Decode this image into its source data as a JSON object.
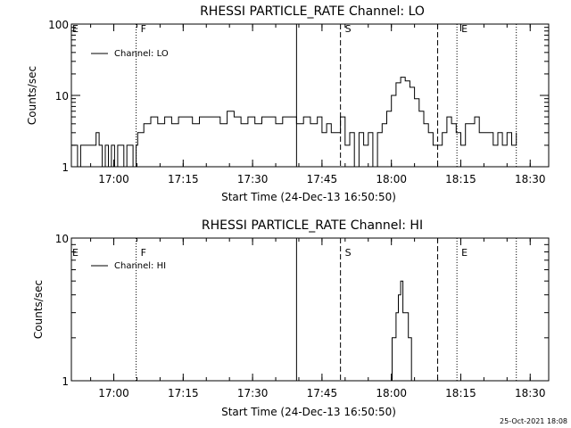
{
  "footer_timestamp": "25-Oct-2021 18:08",
  "chart_data": [
    {
      "type": "line",
      "title": "RHESSI PARTICLE_RATE Channel: LO",
      "xlabel": "Start Time (24-Dec-13 16:50:50)",
      "ylabel": "Counts/sec",
      "y_scale": "log",
      "xlim": [
        "16:50:50",
        "18:34:00"
      ],
      "ylim": [
        1,
        100
      ],
      "x_tick_labels": [
        "17:00",
        "17:15",
        "17:30",
        "17:45",
        "18:00",
        "18:15",
        "18:30"
      ],
      "y_tick_labels": [
        "1",
        "10",
        "100"
      ],
      "legend": {
        "label": "Channel: LO",
        "position": "top-left"
      },
      "markers": [
        {
          "label": "E",
          "time": "16:50:50",
          "style": "none"
        },
        {
          "label": "F",
          "time": "17:04:50",
          "style": "dotted"
        },
        {
          "label": "",
          "time": "17:39:30",
          "style": "solid"
        },
        {
          "label": "S",
          "time": "17:49:00",
          "style": "dashed"
        },
        {
          "label": "",
          "time": "18:10:00",
          "style": "dashed"
        },
        {
          "label": "E",
          "time": "18:14:10",
          "style": "dotted"
        },
        {
          "label": "",
          "time": "18:27:00",
          "style": "dotted"
        }
      ],
      "series": [
        {
          "x": [
            "16:50:50",
            "16:51:30",
            "16:52:10",
            "16:52:50",
            "16:53:30",
            "16:54:10",
            "16:54:50",
            "16:55:30",
            "16:56:10",
            "16:56:50",
            "16:57:30",
            "16:58:10",
            "16:58:50",
            "16:59:30",
            "17:00:10",
            "17:00:50",
            "17:01:30",
            "17:02:10",
            "17:02:50",
            "17:03:30",
            "17:04:10",
            "17:04:50",
            "17:05:10",
            "17:06:30",
            "17:08:00",
            "17:09:30",
            "17:11:00",
            "17:12:30",
            "17:14:00",
            "17:15:30",
            "17:17:00",
            "17:18:30",
            "17:20:00",
            "17:21:30",
            "17:23:00",
            "17:24:30",
            "17:26:00",
            "17:27:30",
            "17:29:00",
            "17:30:30",
            "17:32:00",
            "17:33:30",
            "17:35:00",
            "17:36:30",
            "17:38:00",
            "17:39:30",
            "17:41:00",
            "17:42:30",
            "17:44:00",
            "17:45:00",
            "17:46:00",
            "17:47:00",
            "17:48:00",
            "17:49:00",
            "17:50:00",
            "17:51:00",
            "17:52:00",
            "17:53:00",
            "17:54:00",
            "17:55:00",
            "17:56:00",
            "17:57:00",
            "17:58:00",
            "17:59:00",
            "18:00:00",
            "18:01:00",
            "18:02:00",
            "18:03:00",
            "18:04:00",
            "18:05:00",
            "18:06:00",
            "18:07:00",
            "18:08:00",
            "18:09:00",
            "18:10:00",
            "18:11:00",
            "18:12:00",
            "18:13:00",
            "18:14:00",
            "18:15:00",
            "18:16:00",
            "18:17:00",
            "18:18:00",
            "18:19:00",
            "18:20:00",
            "18:21:00",
            "18:22:00",
            "18:23:00",
            "18:24:00",
            "18:25:00",
            "18:26:00",
            "18:27:00"
          ],
          "y": [
            2,
            2,
            1,
            2,
            2,
            2,
            2,
            2,
            3,
            2,
            1,
            2,
            1,
            2,
            1,
            2,
            2,
            1,
            2,
            2,
            1,
            2,
            3,
            4,
            5,
            4,
            5,
            4,
            5,
            5,
            4,
            5,
            5,
            5,
            4,
            6,
            5,
            4,
            5,
            4,
            5,
            5,
            4,
            5,
            5,
            4,
            5,
            4,
            5,
            3,
            4,
            3,
            3,
            5,
            2,
            3,
            1,
            3,
            2,
            3,
            1,
            3,
            4,
            6,
            10,
            15,
            18,
            16,
            13,
            9,
            6,
            4,
            3,
            2,
            2,
            3,
            5,
            4,
            3,
            2,
            4,
            4,
            5,
            3,
            3,
            3,
            2,
            3,
            2,
            3,
            2,
            3
          ]
        }
      ]
    },
    {
      "type": "line",
      "title": "RHESSI PARTICLE_RATE Channel: HI",
      "xlabel": "Start Time (24-Dec-13 16:50:50)",
      "ylabel": "Counts/sec",
      "y_scale": "log",
      "xlim": [
        "16:50:50",
        "18:34:00"
      ],
      "ylim": [
        1,
        10
      ],
      "x_tick_labels": [
        "17:00",
        "17:15",
        "17:30",
        "17:45",
        "18:00",
        "18:15",
        "18:30"
      ],
      "y_tick_labels": [
        "1",
        "10"
      ],
      "legend": {
        "label": "Channel: HI",
        "position": "top-left"
      },
      "markers": [
        {
          "label": "E",
          "time": "16:50:50",
          "style": "none"
        },
        {
          "label": "F",
          "time": "17:04:50",
          "style": "dotted"
        },
        {
          "label": "",
          "time": "17:39:30",
          "style": "solid"
        },
        {
          "label": "S",
          "time": "17:49:00",
          "style": "dashed"
        },
        {
          "label": "",
          "time": "18:10:00",
          "style": "dashed"
        },
        {
          "label": "E",
          "time": "18:14:10",
          "style": "dotted"
        },
        {
          "label": "",
          "time": "18:27:00",
          "style": "dotted"
        }
      ],
      "series": [
        {
          "x": [
            "17:59:20",
            "18:00:10",
            "18:01:00",
            "18:01:30",
            "18:02:00",
            "18:02:30",
            "18:03:00",
            "18:03:40",
            "18:04:20"
          ],
          "y": [
            1,
            2,
            3,
            4,
            5,
            3,
            3,
            2,
            1
          ]
        }
      ]
    }
  ]
}
